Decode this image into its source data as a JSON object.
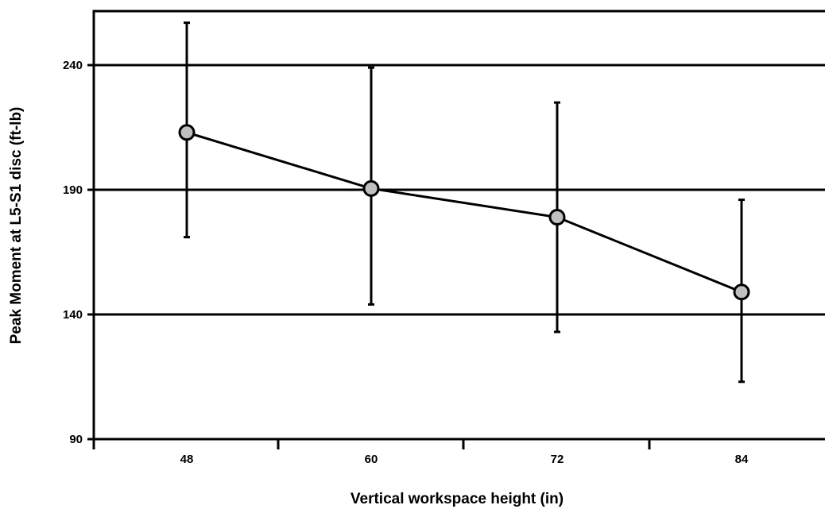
{
  "chart_data": {
    "type": "line",
    "title": "",
    "xlabel": "Vertical workspace height (in)",
    "ylabel": "Peak Moment at L5-S1 disc (ft-lb)",
    "categories": [
      "48",
      "60",
      "72",
      "84"
    ],
    "series": [
      {
        "values": [
          213,
          190.5,
          179,
          149
        ],
        "error_low": [
          171,
          144,
          133,
          113
        ],
        "error_high": [
          257,
          239,
          225,
          186
        ]
      }
    ],
    "y_ticks": [
      90,
      140,
      190,
      240
    ],
    "ylim": [
      90,
      260
    ],
    "grid": "horizontal",
    "legend": "none",
    "colors": {
      "line": "#000000",
      "marker_fill": "#c0c0c0",
      "grid": "#000000"
    }
  }
}
